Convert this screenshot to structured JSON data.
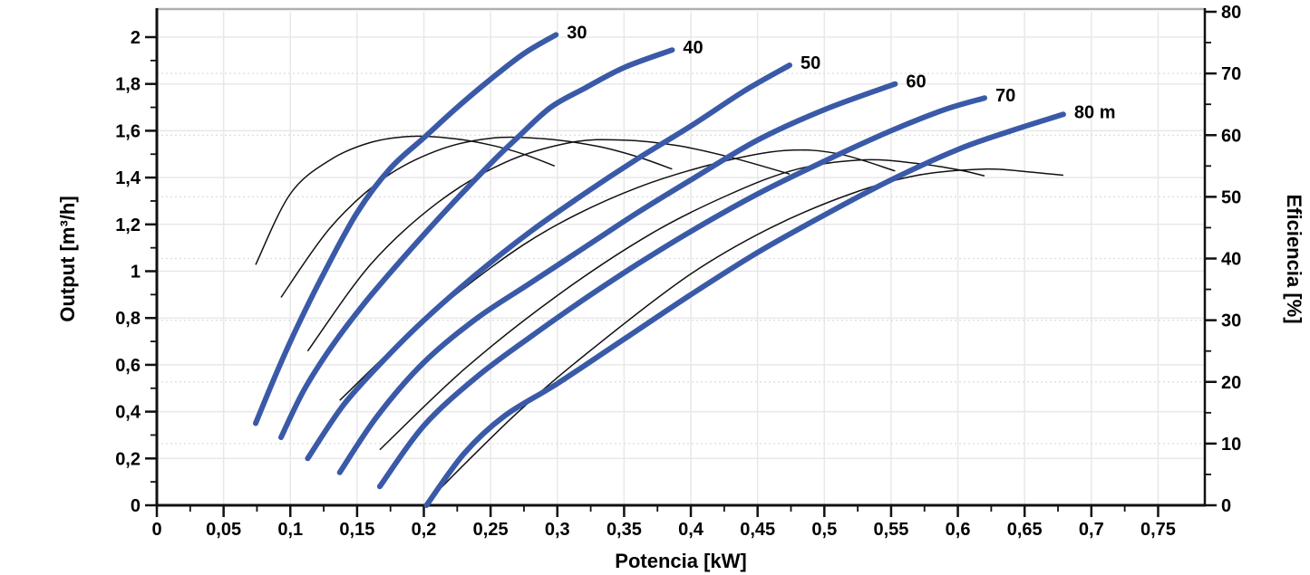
{
  "chart_data": {
    "type": "line",
    "title": "",
    "xlabel": "Potencia [kW]",
    "ylabel_left": "Output [m³/h]",
    "ylabel_right": "Eficiencia [%]",
    "grid": "on",
    "legend_position": "none",
    "colors": {
      "head_curve": "#3a5aa8",
      "efficiency_curve": "#111111",
      "axis": "#111111",
      "top_border": "#b0b0b0",
      "grid_solid": "#e8e8e8",
      "grid_dotted": "#dcdcdc",
      "text": "#000000"
    },
    "x_axis": {
      "min": 0,
      "max": 0.785,
      "major_step": 0.05,
      "minor_step": 0.025,
      "tick_values": [
        0,
        0.05,
        0.1,
        0.15,
        0.2,
        0.25,
        0.3,
        0.35,
        0.4,
        0.45,
        0.5,
        0.55,
        0.6,
        0.65,
        0.7,
        0.75
      ],
      "tick_labels": [
        "0",
        "0,05",
        "0,1",
        "0,15",
        "0,2",
        "0,25",
        "0,3",
        "0,35",
        "0,4",
        "0,45",
        "0,5",
        "0,55",
        "0,6",
        "0,65",
        "0,7",
        "0,75"
      ],
      "minor_tick_values": [
        0.025,
        0.075,
        0.125,
        0.175,
        0.225,
        0.275,
        0.325,
        0.375,
        0.425,
        0.475,
        0.525,
        0.575,
        0.625,
        0.675,
        0.725
      ]
    },
    "y_left": {
      "min": 0,
      "max_tick": 2,
      "major_step": 0.2,
      "minor_step": 0.1,
      "tick_values": [
        0,
        0.2,
        0.4,
        0.6,
        0.8,
        1,
        1.2,
        1.4,
        1.6,
        1.8,
        2
      ],
      "tick_labels": [
        "0",
        "0,2",
        "0,4",
        "0,6",
        "0,8",
        "1",
        "1,2",
        "1,4",
        "1,6",
        "1,8",
        "2"
      ],
      "minor_tick_values": [
        0.1,
        0.3,
        0.5,
        0.7,
        0.9,
        1.1,
        1.3,
        1.5,
        1.7,
        1.9
      ]
    },
    "y_right": {
      "min": 0,
      "max": 80,
      "major_step": 10,
      "minor_step": 5,
      "tick_values": [
        0,
        10,
        20,
        30,
        40,
        50,
        60,
        70,
        80
      ],
      "tick_labels": [
        "0",
        "10",
        "20",
        "30",
        "40",
        "50",
        "60",
        "70",
        "80"
      ],
      "minor_tick_values": [
        5,
        15,
        25,
        35,
        45,
        55,
        65,
        75
      ],
      "grid_values": [
        10,
        20,
        30,
        40,
        50,
        60,
        70
      ]
    },
    "head_curves": [
      {
        "label": "30",
        "head_m": 30,
        "points": [
          [
            0.074,
            0.35
          ],
          [
            0.09,
            0.57
          ],
          [
            0.105,
            0.76
          ],
          [
            0.125,
            0.99
          ],
          [
            0.15,
            1.25
          ],
          [
            0.175,
            1.44
          ],
          [
            0.2,
            1.57
          ],
          [
            0.225,
            1.7
          ],
          [
            0.25,
            1.82
          ],
          [
            0.275,
            1.93
          ],
          [
            0.299,
            2.01
          ]
        ]
      },
      {
        "label": "40",
        "head_m": 40,
        "points": [
          [
            0.093,
            0.29
          ],
          [
            0.11,
            0.49
          ],
          [
            0.13,
            0.67
          ],
          [
            0.155,
            0.86
          ],
          [
            0.185,
            1.06
          ],
          [
            0.215,
            1.25
          ],
          [
            0.25,
            1.46
          ],
          [
            0.27,
            1.57
          ],
          [
            0.295,
            1.7
          ],
          [
            0.32,
            1.78
          ],
          [
            0.35,
            1.87
          ],
          [
            0.386,
            1.945
          ]
        ]
      },
      {
        "label": "50",
        "head_m": 50,
        "points": [
          [
            0.113,
            0.2
          ],
          [
            0.14,
            0.43
          ],
          [
            0.17,
            0.62
          ],
          [
            0.2,
            0.79
          ],
          [
            0.24,
            0.99
          ],
          [
            0.28,
            1.17
          ],
          [
            0.32,
            1.33
          ],
          [
            0.36,
            1.48
          ],
          [
            0.4,
            1.62
          ],
          [
            0.44,
            1.77
          ],
          [
            0.474,
            1.88
          ]
        ]
      },
      {
        "label": "60",
        "head_m": 60,
        "points": [
          [
            0.137,
            0.14
          ],
          [
            0.165,
            0.38
          ],
          [
            0.2,
            0.61
          ],
          [
            0.24,
            0.8
          ],
          [
            0.28,
            0.95
          ],
          [
            0.32,
            1.1
          ],
          [
            0.36,
            1.25
          ],
          [
            0.4,
            1.39
          ],
          [
            0.45,
            1.56
          ],
          [
            0.5,
            1.69
          ],
          [
            0.553,
            1.8
          ]
        ]
      },
      {
        "label": "70",
        "head_m": 70,
        "points": [
          [
            0.167,
            0.08
          ],
          [
            0.2,
            0.34
          ],
          [
            0.24,
            0.55
          ],
          [
            0.28,
            0.72
          ],
          [
            0.32,
            0.88
          ],
          [
            0.36,
            1.03
          ],
          [
            0.4,
            1.17
          ],
          [
            0.45,
            1.33
          ],
          [
            0.5,
            1.47
          ],
          [
            0.55,
            1.6
          ],
          [
            0.59,
            1.69
          ],
          [
            0.62,
            1.74
          ]
        ]
      },
      {
        "label": "80 m",
        "head_m": 80,
        "points": [
          [
            0.202,
            0
          ],
          [
            0.23,
            0.22
          ],
          [
            0.26,
            0.38
          ],
          [
            0.3,
            0.52
          ],
          [
            0.35,
            0.71
          ],
          [
            0.4,
            0.9
          ],
          [
            0.45,
            1.08
          ],
          [
            0.5,
            1.24
          ],
          [
            0.55,
            1.39
          ],
          [
            0.6,
            1.52
          ],
          [
            0.64,
            1.6
          ],
          [
            0.679,
            1.67
          ]
        ]
      }
    ],
    "efficiency_curves": [
      {
        "head_m": 30,
        "points": [
          [
            0.074,
            39
          ],
          [
            0.1,
            50.5
          ],
          [
            0.13,
            56
          ],
          [
            0.16,
            58.8
          ],
          [
            0.19,
            59.8
          ],
          [
            0.22,
            59.5
          ],
          [
            0.25,
            58.4
          ],
          [
            0.275,
            56.9
          ],
          [
            0.298,
            55
          ]
        ]
      },
      {
        "head_m": 40,
        "points": [
          [
            0.093,
            33.7
          ],
          [
            0.13,
            45
          ],
          [
            0.17,
            53
          ],
          [
            0.21,
            57.5
          ],
          [
            0.25,
            59.5
          ],
          [
            0.29,
            59.4
          ],
          [
            0.33,
            58.2
          ],
          [
            0.36,
            56.5
          ],
          [
            0.386,
            54.5
          ]
        ]
      },
      {
        "head_m": 50,
        "points": [
          [
            0.113,
            25
          ],
          [
            0.16,
            39
          ],
          [
            0.21,
            49
          ],
          [
            0.26,
            55.5
          ],
          [
            0.31,
            58.8
          ],
          [
            0.35,
            59.2
          ],
          [
            0.39,
            58.3
          ],
          [
            0.43,
            56.4
          ],
          [
            0.474,
            53.7
          ]
        ]
      },
      {
        "head_m": 60,
        "points": [
          [
            0.137,
            17
          ],
          [
            0.19,
            28
          ],
          [
            0.25,
            38.5
          ],
          [
            0.3,
            45.5
          ],
          [
            0.36,
            51.5
          ],
          [
            0.42,
            55.5
          ],
          [
            0.47,
            57.5
          ],
          [
            0.51,
            57
          ],
          [
            0.553,
            54.2
          ]
        ]
      },
      {
        "head_m": 70,
        "points": [
          [
            0.167,
            9
          ],
          [
            0.23,
            22
          ],
          [
            0.3,
            34
          ],
          [
            0.37,
            44
          ],
          [
            0.43,
            50.5
          ],
          [
            0.48,
            54.5
          ],
          [
            0.53,
            56
          ],
          [
            0.57,
            55.4
          ],
          [
            0.6,
            54.4
          ],
          [
            0.62,
            53.4
          ]
        ]
      },
      {
        "head_m": 80,
        "points": [
          [
            0.202,
            0.5
          ],
          [
            0.27,
            15
          ],
          [
            0.33,
            26
          ],
          [
            0.4,
            37.5
          ],
          [
            0.46,
            45
          ],
          [
            0.52,
            50.5
          ],
          [
            0.57,
            53.5
          ],
          [
            0.62,
            54.5
          ],
          [
            0.655,
            54
          ],
          [
            0.679,
            53.5
          ]
        ]
      }
    ]
  }
}
